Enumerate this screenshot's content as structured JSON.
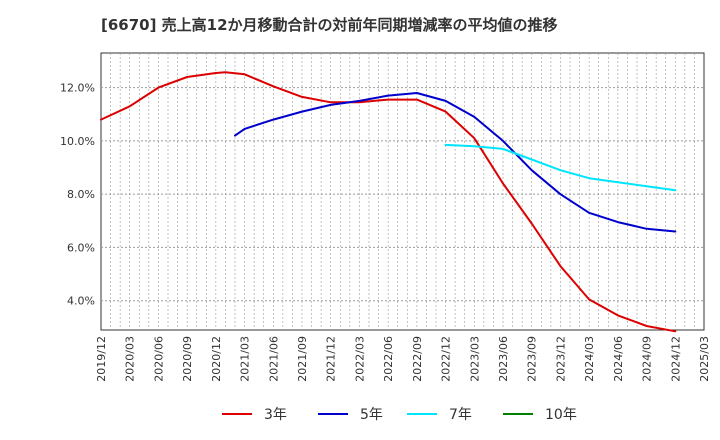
{
  "chart_data": {
    "type": "line",
    "title": "[6670]  売上高12か月移動合計の対前年同期増減率の平均値の推移",
    "xlabel": "",
    "ylabel": "",
    "x_ticks": [
      "2019/12",
      "2020/03",
      "2020/06",
      "2020/09",
      "2020/12",
      "2021/03",
      "2021/06",
      "2021/09",
      "2021/12",
      "2022/03",
      "2022/06",
      "2022/09",
      "2022/12",
      "2023/03",
      "2023/06",
      "2023/09",
      "2023/12",
      "2024/03",
      "2024/06",
      "2024/09",
      "2024/12",
      "2025/03"
    ],
    "y_ticks": [
      "4.0%",
      "6.0%",
      "8.0%",
      "10.0%",
      "12.0%"
    ],
    "y_tick_values": [
      4,
      6,
      8,
      10,
      12
    ],
    "ylim": [
      2.9,
      13.3
    ],
    "grid": true,
    "legend_position": "bottom",
    "series": [
      {
        "name": "3年",
        "color": "#dd0000",
        "x": [
          "2019/12",
          "2020/03",
          "2020/06",
          "2020/09",
          "2020/12",
          "2021/01",
          "2021/03",
          "2021/06",
          "2021/09",
          "2021/12",
          "2022/03",
          "2022/06",
          "2022/09",
          "2022/12",
          "2023/03",
          "2023/06",
          "2023/09",
          "2023/12",
          "2024/03",
          "2024/06",
          "2024/09",
          "2024/12"
        ],
        "values": [
          10.8,
          11.3,
          12.0,
          12.4,
          12.55,
          12.58,
          12.5,
          12.05,
          11.65,
          11.45,
          11.45,
          11.55,
          11.55,
          11.1,
          10.1,
          8.4,
          6.9,
          5.3,
          4.05,
          3.45,
          3.05,
          2.85
        ]
      },
      {
        "name": "5年",
        "color": "#0000cc",
        "x": [
          "2021/02",
          "2021/03",
          "2021/06",
          "2021/09",
          "2021/12",
          "2022/03",
          "2022/06",
          "2022/09",
          "2022/12",
          "2023/03",
          "2023/06",
          "2023/09",
          "2023/12",
          "2024/03",
          "2024/06",
          "2024/09",
          "2024/12"
        ],
        "values": [
          10.2,
          10.45,
          10.8,
          11.1,
          11.35,
          11.5,
          11.7,
          11.8,
          11.5,
          10.9,
          10.0,
          8.9,
          8.0,
          7.3,
          6.95,
          6.7,
          6.6
        ]
      },
      {
        "name": "7年",
        "color": "#00e5ff",
        "x": [
          "2022/12",
          "2023/03",
          "2023/06",
          "2023/09",
          "2023/12",
          "2024/03",
          "2024/06",
          "2024/09",
          "2024/12"
        ],
        "values": [
          9.85,
          9.8,
          9.7,
          9.3,
          8.9,
          8.6,
          8.45,
          8.3,
          8.15
        ]
      },
      {
        "name": "10年",
        "color": "#008000",
        "x": [],
        "values": []
      }
    ]
  }
}
